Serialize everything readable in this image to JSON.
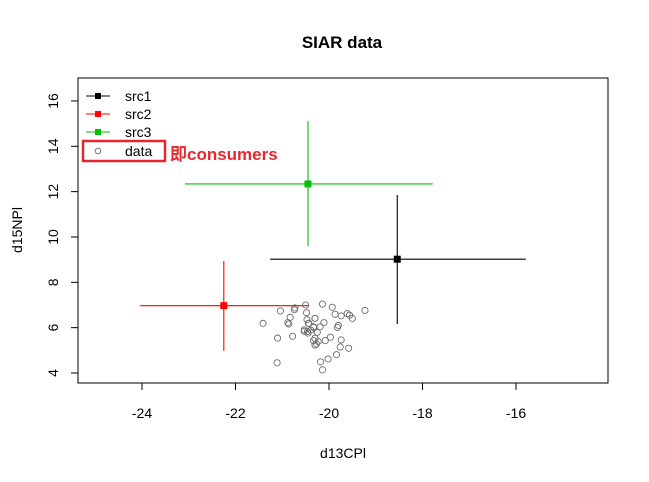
{
  "chart_data": {
    "type": "scatter",
    "title": "SIAR data",
    "xlabel": "d13CPl",
    "ylabel": "d15NPl",
    "xlim": [
      -25.35,
      -14.05
    ],
    "ylim": [
      3.55,
      16.95
    ],
    "x_ticks": [
      -24,
      -22,
      -20,
      -18,
      -16
    ],
    "y_ticks": [
      4,
      6,
      8,
      10,
      12,
      14,
      16
    ],
    "grid": false,
    "legend_position": "top-left",
    "sources": [
      {
        "name": "src1",
        "color": "#000000",
        "x": -18.54,
        "y": 9.02,
        "x_low": -21.26,
        "x_high": -15.79,
        "y_low": 6.16,
        "y_high": 11.85
      },
      {
        "name": "src2",
        "color": "#ff0000",
        "x": -22.25,
        "y": 6.97,
        "x_low": -24.04,
        "x_high": -20.43,
        "y_low": 4.98,
        "y_high": 8.94
      },
      {
        "name": "src3",
        "color": "#00c000",
        "x": -20.45,
        "y": 12.34,
        "x_low": -23.08,
        "x_high": -17.78,
        "y_low": 9.6,
        "y_high": 15.12
      }
    ],
    "data_series": {
      "name": "data",
      "color": "#666666",
      "marker": "open-circle",
      "points": [
        [
          -20.5,
          7.0
        ],
        [
          -21.04,
          6.74
        ],
        [
          -20.73,
          6.87
        ],
        [
          -20.74,
          6.79
        ],
        [
          -20.48,
          6.66
        ],
        [
          -20.83,
          6.46
        ],
        [
          -20.88,
          6.22
        ],
        [
          -20.86,
          6.16
        ],
        [
          -21.41,
          6.19
        ],
        [
          -20.47,
          6.35
        ],
        [
          -20.3,
          6.41
        ],
        [
          -20.44,
          6.19
        ],
        [
          -20.33,
          6.04
        ],
        [
          -20.53,
          5.9
        ],
        [
          -20.46,
          5.83
        ],
        [
          -21.1,
          5.54
        ],
        [
          -20.78,
          5.62
        ],
        [
          -20.3,
          5.53
        ],
        [
          -20.27,
          5.28
        ],
        [
          -21.11,
          4.45
        ],
        [
          -20.14,
          7.04
        ],
        [
          -19.23,
          6.76
        ],
        [
          -19.93,
          6.9
        ],
        [
          -19.87,
          6.59
        ],
        [
          -19.61,
          6.62
        ],
        [
          -20.3,
          6.41
        ],
        [
          -19.74,
          6.52
        ],
        [
          -19.56,
          6.55
        ],
        [
          -19.5,
          6.41
        ],
        [
          -20.43,
          6.19
        ],
        [
          -20.11,
          6.22
        ],
        [
          -19.8,
          6.1
        ],
        [
          -19.82,
          6.01
        ],
        [
          -20.33,
          6.01
        ],
        [
          -20.19,
          6.04
        ],
        [
          -20.53,
          5.84
        ],
        [
          -20.45,
          5.76
        ],
        [
          -20.25,
          5.79
        ],
        [
          -20.39,
          5.89
        ],
        [
          -19.97,
          5.58
        ],
        [
          -20.08,
          5.43
        ],
        [
          -20.33,
          5.43
        ],
        [
          -20.23,
          5.39
        ],
        [
          -20.3,
          5.23
        ],
        [
          -19.74,
          5.46
        ],
        [
          -19.76,
          5.15
        ],
        [
          -19.58,
          5.09
        ],
        [
          -19.84,
          4.81
        ],
        [
          -20.02,
          4.62
        ],
        [
          -20.18,
          4.49
        ],
        [
          -20.14,
          4.14
        ]
      ]
    },
    "legend_entries": [
      "src1",
      "src2",
      "src3",
      "data"
    ],
    "annotation": {
      "text": "即consumers",
      "color": "#e8262d",
      "highlights": "data"
    }
  },
  "plot": {
    "title": "SIAR data",
    "xlabel": "d13CPl",
    "ylabel": "d15NPl",
    "legend": {
      "items": [
        {
          "label": "src1",
          "color": "#000000"
        },
        {
          "label": "src2",
          "color": "#ff0000"
        },
        {
          "label": "src3",
          "color": "#00c000"
        },
        {
          "label": "data",
          "color": "#666666"
        }
      ]
    },
    "annotation_text": "即consumers"
  }
}
